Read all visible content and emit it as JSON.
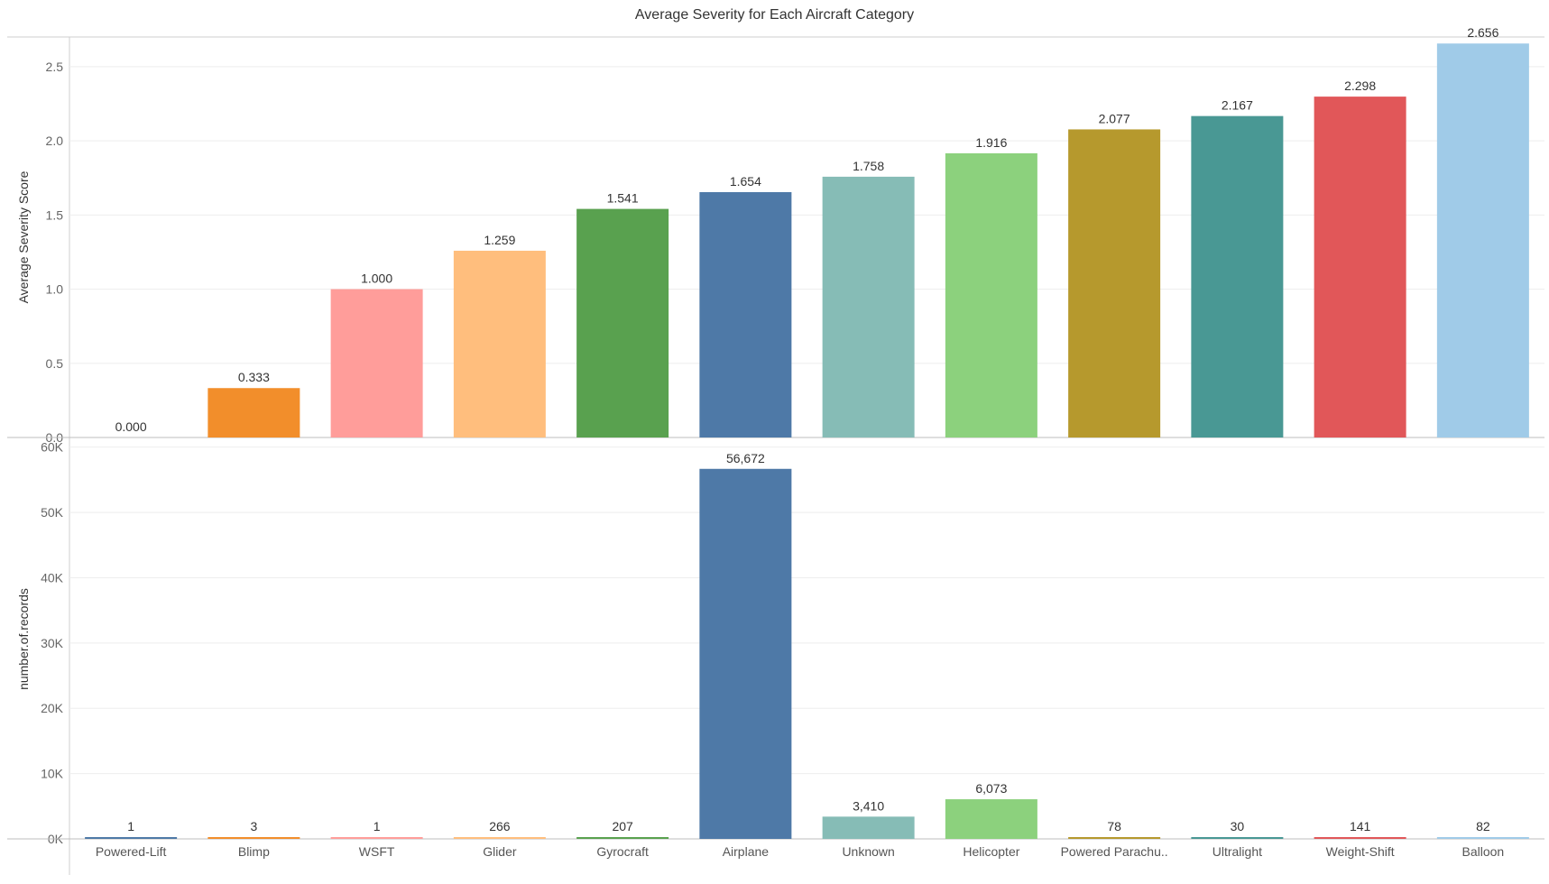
{
  "chart_data": {
    "type": "bar",
    "title": "Average Severity for Each Aircraft Category",
    "categories": [
      "Powered-Lift",
      "Blimp",
      "WSFT",
      "Glider",
      "Gyrocraft",
      "Airplane",
      "Unknown",
      "Helicopter",
      "Powered Parachu..",
      "Ultralight",
      "Weight-Shift",
      "Balloon"
    ],
    "colors": [
      "#4e79a7",
      "#f28e2b",
      "#ff9d9a",
      "#ffbe7d",
      "#59a14f",
      "#4e79a7",
      "#86bcb6",
      "#8cd17d",
      "#b6992d",
      "#499894",
      "#e15759",
      "#a0cbe8"
    ],
    "panels": [
      {
        "name": "severity",
        "ylabel": "Average Severity Score",
        "ylim": [
          0,
          2.7
        ],
        "ticks": [
          0,
          0.5,
          1.0,
          1.5,
          2.0,
          2.5
        ],
        "tick_labels": [
          "0.0",
          "0.5",
          "1.0",
          "1.5",
          "2.0",
          "2.5"
        ],
        "values": [
          0.0,
          0.333,
          1.0,
          1.259,
          1.541,
          1.654,
          1.758,
          1.916,
          2.077,
          2.167,
          2.298,
          2.656
        ],
        "value_labels": [
          "0.000",
          "0.333",
          "1.000",
          "1.259",
          "1.541",
          "1.654",
          "1.758",
          "1.916",
          "2.077",
          "2.167",
          "2.298",
          "2.656"
        ]
      },
      {
        "name": "records",
        "ylabel": "number.of.records",
        "ylim": [
          0,
          61200
        ],
        "ticks": [
          0,
          10000,
          20000,
          30000,
          40000,
          50000,
          60000
        ],
        "tick_labels": [
          "0K",
          "10K",
          "20K",
          "30K",
          "40K",
          "50K",
          "60K"
        ],
        "values": [
          1,
          3,
          1,
          266,
          207,
          56672,
          3410,
          6073,
          78,
          30,
          141,
          82
        ],
        "value_labels": [
          "1",
          "3",
          "1",
          "266",
          "207",
          "56,672",
          "3,410",
          "6,073",
          "78",
          "30",
          "141",
          "82"
        ]
      }
    ],
    "grid": true
  }
}
